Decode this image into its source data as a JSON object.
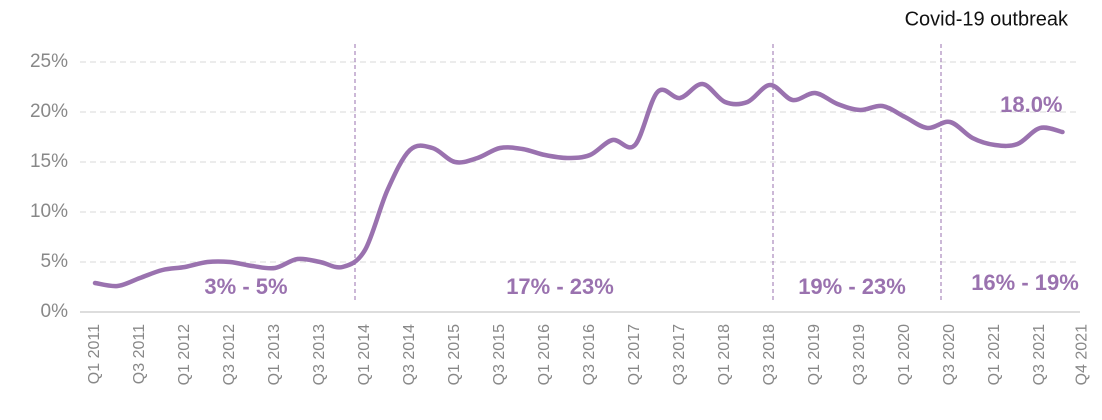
{
  "chart_data": {
    "type": "line",
    "categories": [
      "Q1 2011",
      null,
      "Q3 2011",
      null,
      "Q1 2012",
      null,
      "Q3 2012",
      null,
      "Q1 2013",
      null,
      "Q3 2013",
      null,
      "Q1 2014",
      null,
      "Q3 2014",
      null,
      "Q1 2015",
      null,
      "Q3 2015",
      null,
      "Q1 2016",
      null,
      "Q3 2016",
      null,
      "Q1 2017",
      null,
      "Q3 2017",
      null,
      "Q1 2018",
      null,
      "Q3 2018",
      null,
      "Q1 2019",
      null,
      "Q3 2019",
      null,
      "Q1 2020",
      null,
      "Q3 2020",
      null,
      "Q1 2021",
      null,
      "Q3 2021",
      "Q4 2021"
    ],
    "series": [
      {
        "color": "#9a72af",
        "values": [
          2.9,
          2.6,
          3.4,
          4.2,
          4.5,
          5.0,
          5.0,
          4.6,
          4.4,
          5.3,
          5.0,
          4.5,
          6.2,
          12.2,
          16.2,
          16.4,
          15.0,
          15.4,
          16.4,
          16.3,
          15.7,
          15.4,
          15.7,
          17.2,
          16.7,
          22.0,
          21.4,
          22.8,
          21.0,
          21.0,
          22.7,
          21.2,
          21.9,
          20.8,
          20.2,
          20.6,
          19.5,
          18.4,
          19.0,
          17.4,
          16.7,
          16.8,
          18.4,
          18.0
        ],
        "value_labels": [
          null,
          null,
          null,
          null,
          null,
          null,
          null,
          null,
          null,
          null,
          null,
          null,
          null,
          null,
          null,
          null,
          null,
          null,
          null,
          null,
          null,
          null,
          null,
          null,
          null,
          null,
          null,
          null,
          null,
          null,
          null,
          null,
          null,
          null,
          null,
          null,
          null,
          null,
          null,
          null,
          null,
          null,
          null,
          "18.0%"
        ]
      }
    ],
    "ylim": [
      0,
      25
    ],
    "yticks": [
      {
        "value": 0,
        "label": "0%"
      },
      {
        "value": 5,
        "label": "5%"
      },
      {
        "value": 10,
        "label": "10%"
      },
      {
        "value": 15,
        "label": "15%"
      },
      {
        "value": 20,
        "label": "20%"
      },
      {
        "value": 25,
        "label": "25%"
      }
    ],
    "grid": true,
    "annotations": [
      "Covid-19 outbreak",
      "3% - 5%",
      "17% - 23%",
      "19% - 23%",
      "16% - 19%"
    ]
  }
}
